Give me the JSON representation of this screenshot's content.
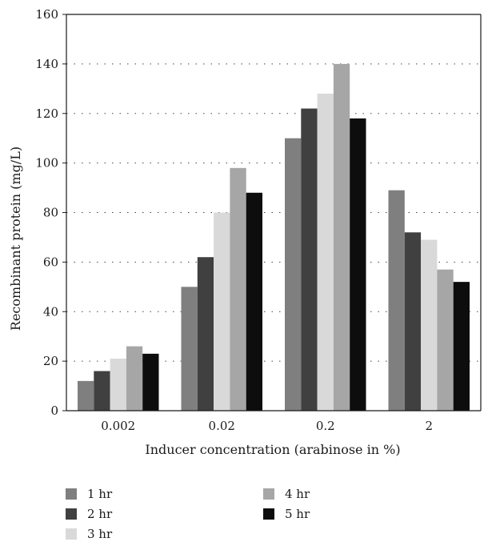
{
  "chart_data": {
    "type": "bar",
    "categories": [
      "0.002",
      "0.02",
      "0.2",
      "2"
    ],
    "series": [
      {
        "name": "1 hr",
        "values": [
          12,
          50,
          110,
          89
        ],
        "color": "#7f7f7f"
      },
      {
        "name": "2 hr",
        "values": [
          16,
          62,
          122,
          72
        ],
        "color": "#404040"
      },
      {
        "name": "3 hr",
        "values": [
          21,
          80,
          128,
          69
        ],
        "color": "#d9d9d9"
      },
      {
        "name": "4 hr",
        "values": [
          26,
          98,
          140,
          57
        ],
        "color": "#a6a6a6"
      },
      {
        "name": "5 hr",
        "values": [
          23,
          88,
          118,
          52
        ],
        "color": "#0d0d0d"
      }
    ],
    "title": "",
    "xlabel": "Inducer concentration (arabinose in %)",
    "ylabel": "Recombinant protein (mg/L)",
    "ylim": [
      0,
      160
    ],
    "yticks": [
      "0",
      "20",
      "40",
      "60",
      "80",
      "100",
      "120",
      "140",
      "160"
    ],
    "grid": "dotted horizontal",
    "legend_position": "bottom"
  }
}
